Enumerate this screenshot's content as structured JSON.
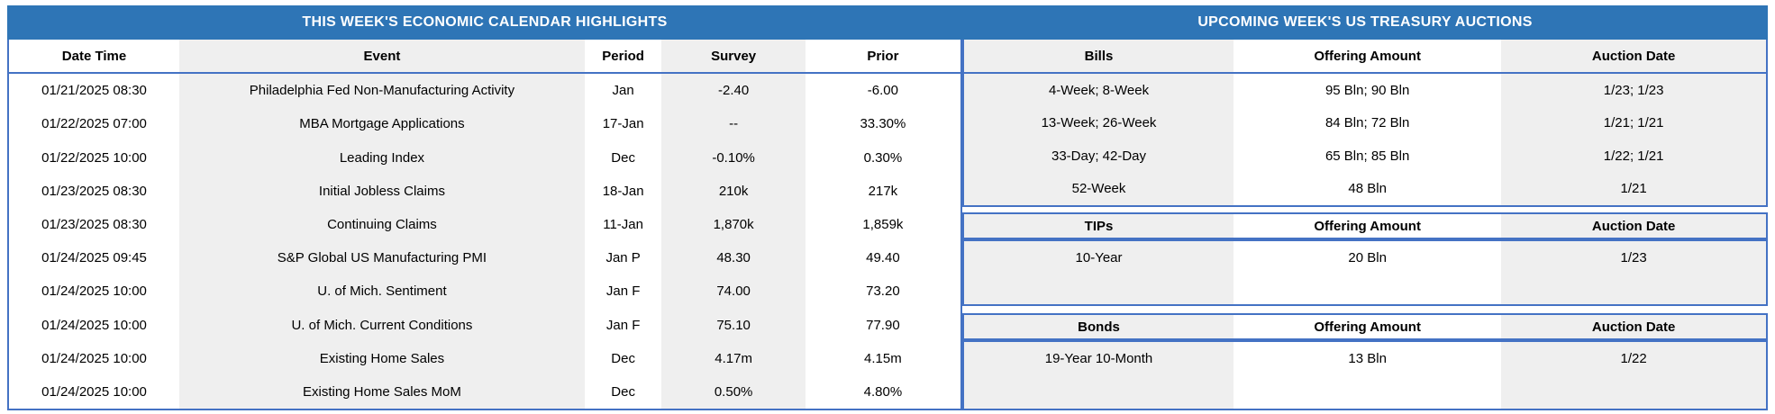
{
  "colors": {
    "title_bar_blue": "#2E75B6",
    "border_blue": "#4472C4",
    "stripe_gray": "#EFEFEF",
    "title_text": "#FFFFFF",
    "body_text": "#000000"
  },
  "calendar": {
    "title": "THIS WEEK'S ECONOMIC CALENDAR HIGHLIGHTS",
    "columns": [
      "Date Time",
      "Event",
      "Period",
      "Survey",
      "Prior"
    ],
    "rows": [
      [
        "01/21/2025 08:30",
        "Philadelphia Fed Non-Manufacturing Activity",
        "Jan",
        "-2.40",
        "-6.00"
      ],
      [
        "01/22/2025 07:00",
        "MBA Mortgage Applications",
        "17-Jan",
        "--",
        "33.30%"
      ],
      [
        "01/22/2025 10:00",
        "Leading Index",
        "Dec",
        "-0.10%",
        "0.30%"
      ],
      [
        "01/23/2025 08:30",
        "Initial Jobless Claims",
        "18-Jan",
        "210k",
        "217k"
      ],
      [
        "01/23/2025 08:30",
        "Continuing Claims",
        "11-Jan",
        "1,870k",
        "1,859k"
      ],
      [
        "01/24/2025 09:45",
        "S&P Global US Manufacturing PMI",
        "Jan P",
        "48.30",
        "49.40"
      ],
      [
        "01/24/2025 10:00",
        "U. of Mich. Sentiment",
        "Jan F",
        "74.00",
        "73.20"
      ],
      [
        "01/24/2025 10:00",
        "U. of Mich. Current Conditions",
        "Jan F",
        "75.10",
        "77.90"
      ],
      [
        "01/24/2025 10:00",
        "Existing Home Sales",
        "Dec",
        "4.17m",
        "4.15m"
      ],
      [
        "01/24/2025 10:00",
        "Existing Home Sales MoM",
        "Dec",
        "0.50%",
        "4.80%"
      ]
    ]
  },
  "auctions": {
    "title": "UPCOMING WEEK'S US TREASURY AUCTIONS",
    "bills": {
      "columns": [
        "Bills",
        "Offering Amount",
        "Auction Date"
      ],
      "rows": [
        [
          "4-Week; 8-Week",
          "95 Bln; 90 Bln",
          "1/23; 1/23"
        ],
        [
          "13-Week; 26-Week",
          "84 Bln; 72 Bln",
          "1/21; 1/21"
        ],
        [
          "33-Day; 42-Day",
          "65 Bln; 85 Bln",
          "1/22; 1/21"
        ],
        [
          "52-Week",
          "48 Bln",
          "1/21"
        ]
      ]
    },
    "tips": {
      "columns": [
        "TIPs",
        "Offering Amount",
        "Auction Date"
      ],
      "rows": [
        [
          "10-Year",
          "20 Bln",
          "1/23"
        ]
      ]
    },
    "bonds": {
      "columns": [
        "Bonds",
        "Offering Amount",
        "Auction Date"
      ],
      "rows": [
        [
          "19-Year 10-Month",
          "13 Bln",
          "1/22"
        ]
      ]
    }
  }
}
